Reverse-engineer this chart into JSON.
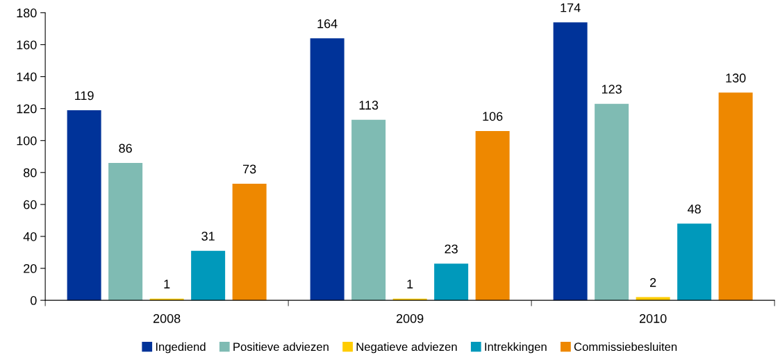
{
  "chart_data": {
    "type": "bar",
    "categories": [
      "2008",
      "2009",
      "2010"
    ],
    "series": [
      {
        "name": "Ingediend",
        "color": "#003399",
        "values": [
          119,
          164,
          174
        ]
      },
      {
        "name": "Positieve adviezen",
        "color": "#7fbbb3",
        "values": [
          86,
          113,
          123
        ]
      },
      {
        "name": "Negatieve adviezen",
        "color": "#ffcc00",
        "values": [
          1,
          1,
          2
        ]
      },
      {
        "name": "Intrekkingen",
        "color": "#0099bb",
        "values": [
          31,
          23,
          48
        ]
      },
      {
        "name": "Commissiebesluiten",
        "color": "#ee8800",
        "values": [
          73,
          106,
          130
        ]
      }
    ],
    "ylim": [
      0,
      180
    ],
    "yticks": [
      0,
      20,
      40,
      60,
      80,
      100,
      120,
      140,
      160,
      180
    ],
    "data_labels": true,
    "grid": false,
    "legend": "bottom"
  }
}
